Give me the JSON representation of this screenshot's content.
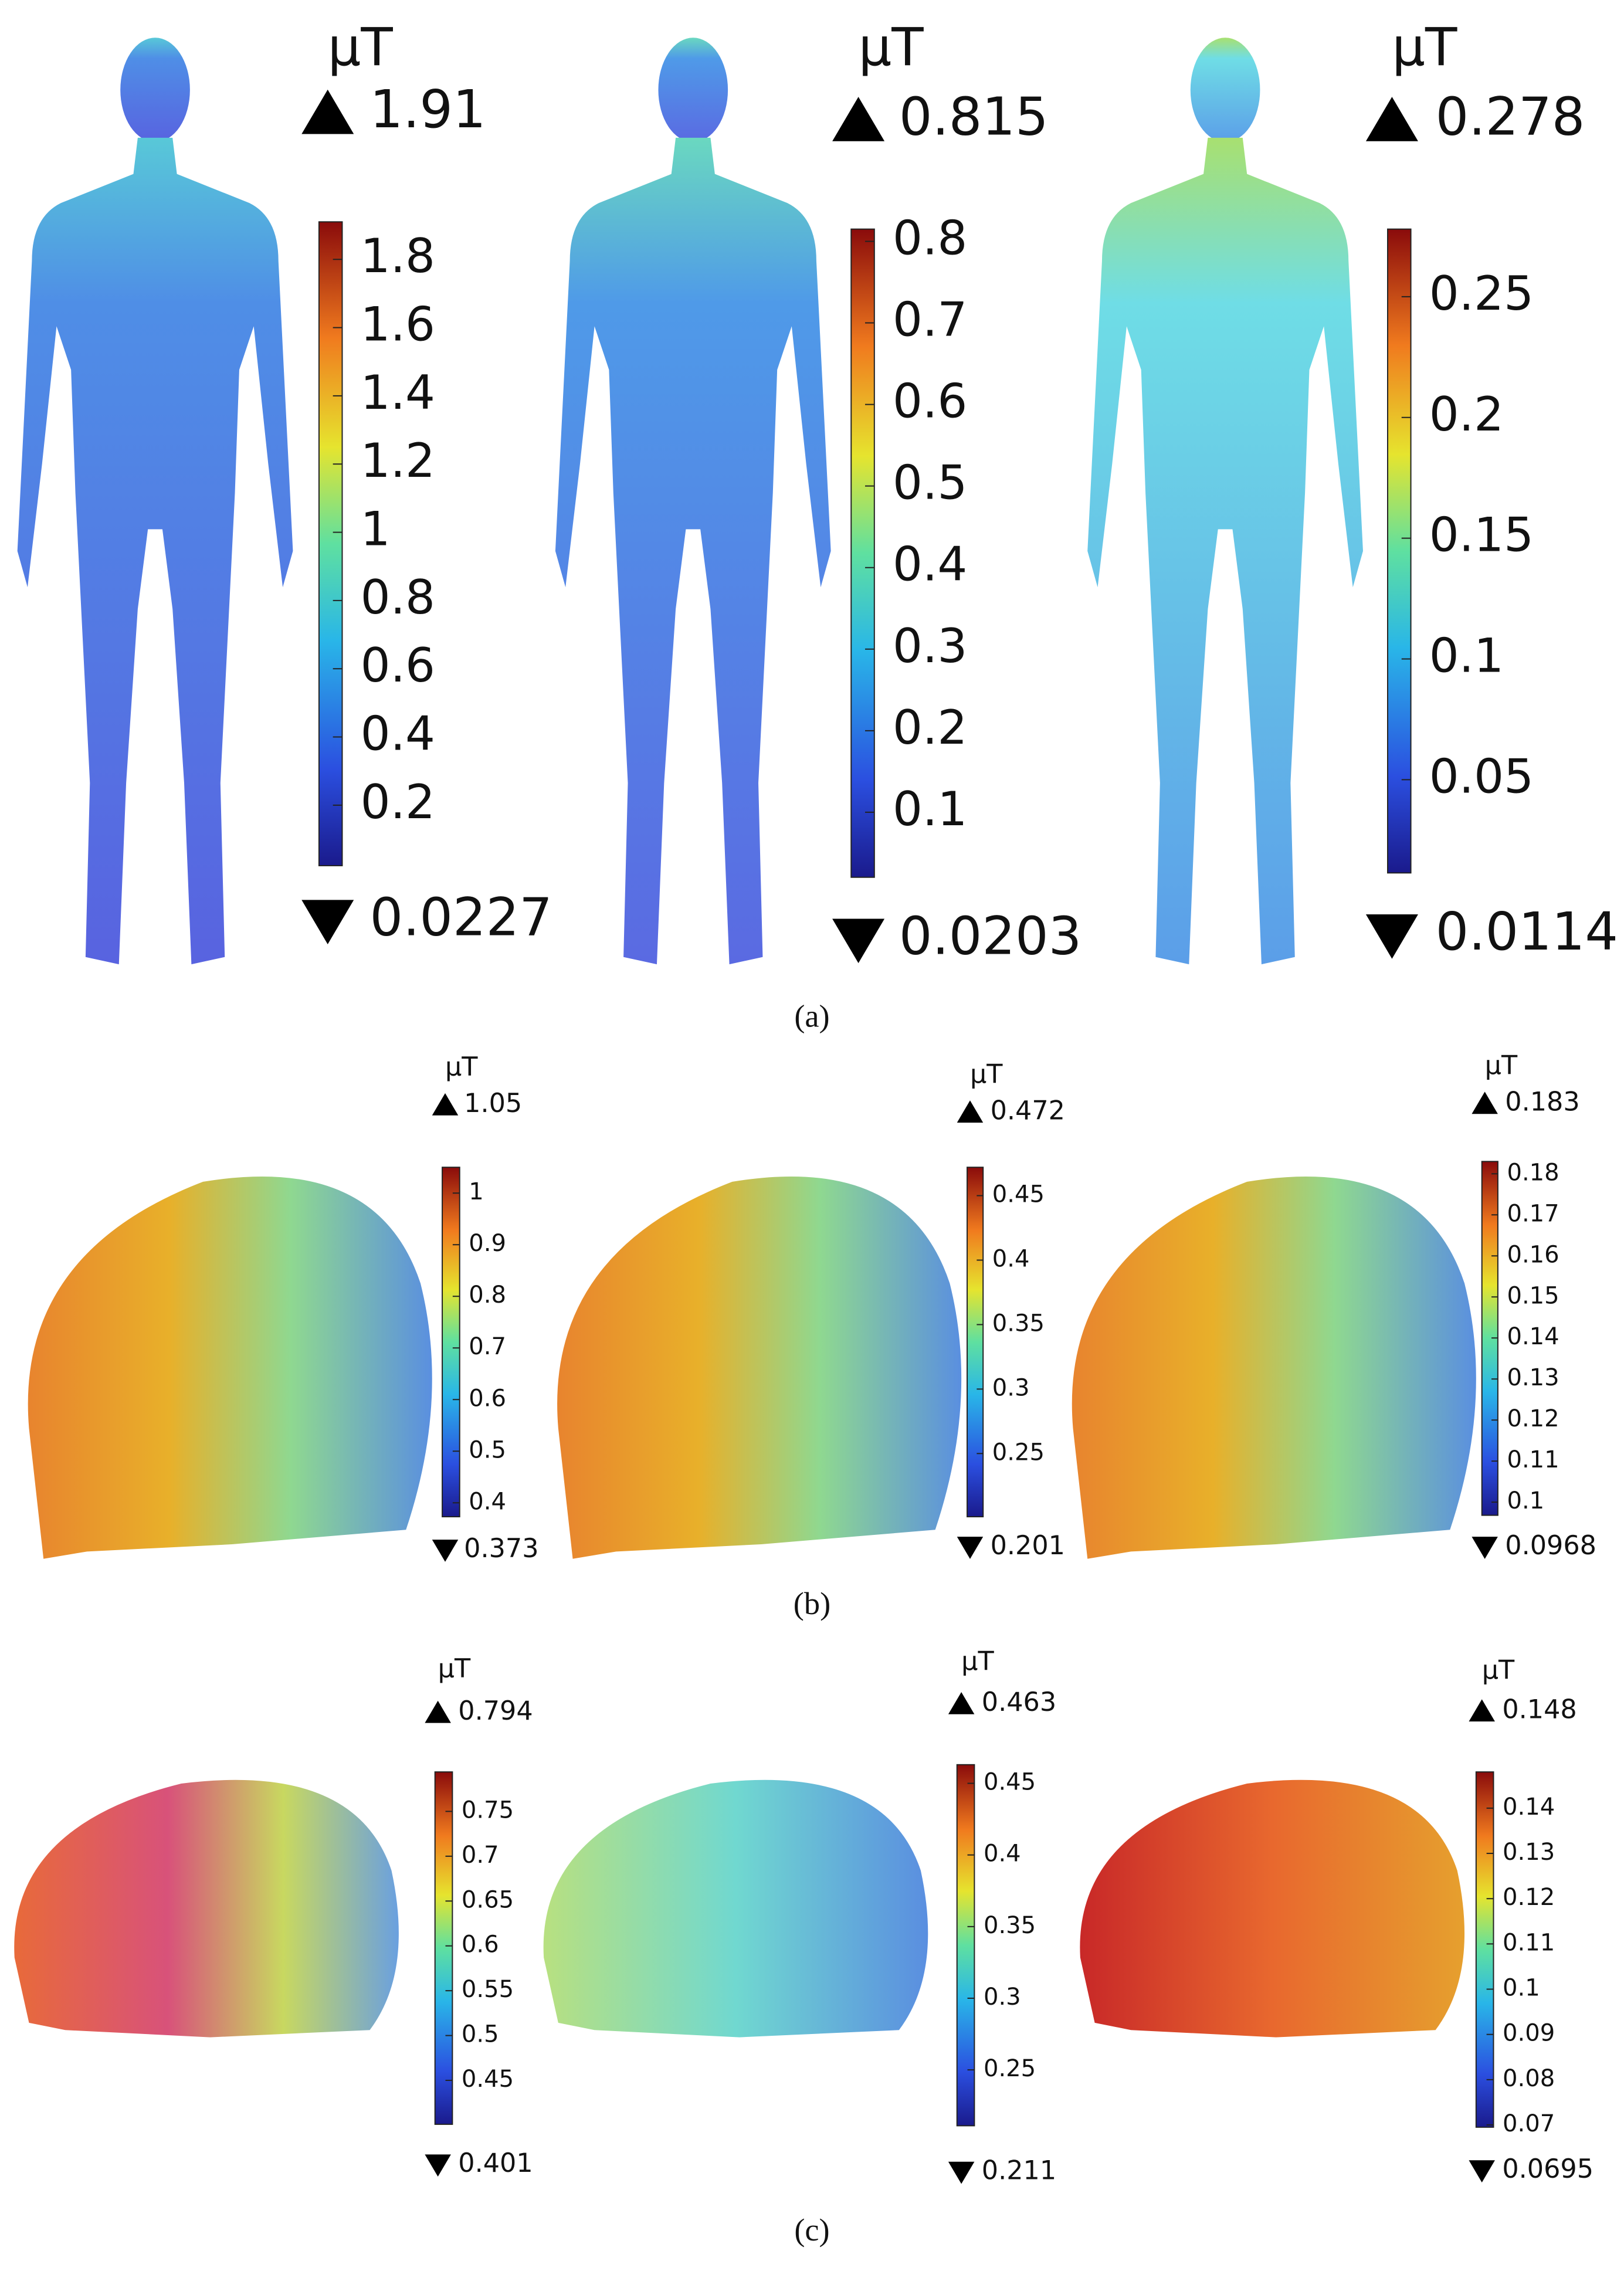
{
  "figure": {
    "rows": [
      {
        "caption": "(a)",
        "panels": [
          {
            "unit": "μT",
            "max": 1.91,
            "min": 0.0227,
            "ticks": [
              0.2,
              0.4,
              0.6,
              0.8,
              1,
              1.2,
              1.4,
              1.6,
              1.8
            ]
          },
          {
            "unit": "μT",
            "max": 0.815,
            "min": 0.0203,
            "ticks": [
              0.1,
              0.2,
              0.3,
              0.4,
              0.5,
              0.6,
              0.7,
              0.8
            ]
          },
          {
            "unit": "μT",
            "max": 0.278,
            "min": 0.0114,
            "ticks": [
              0.05,
              0.1,
              0.15,
              0.2,
              0.25
            ]
          }
        ]
      },
      {
        "caption": "(b)",
        "panels": [
          {
            "unit": "μT",
            "max": 1.05,
            "min": 0.373,
            "ticks": [
              0.4,
              0.5,
              0.6,
              0.7,
              0.8,
              0.9,
              1
            ]
          },
          {
            "unit": "μT",
            "max": 0.472,
            "min": 0.201,
            "ticks": [
              0.25,
              0.3,
              0.35,
              0.4,
              0.45
            ]
          },
          {
            "unit": "μT",
            "max": 0.183,
            "min": 0.0968,
            "ticks": [
              0.1,
              0.11,
              0.12,
              0.13,
              0.14,
              0.15,
              0.16,
              0.17,
              0.18
            ]
          }
        ]
      },
      {
        "caption": "(c)",
        "panels": [
          {
            "unit": "μT",
            "max": 0.794,
            "min": 0.401,
            "ticks": [
              0.45,
              0.5,
              0.55,
              0.6,
              0.65,
              0.7,
              0.75
            ]
          },
          {
            "unit": "μT",
            "max": 0.463,
            "min": 0.211,
            "ticks": [
              0.25,
              0.3,
              0.35,
              0.4,
              0.45
            ]
          },
          {
            "unit": "μT",
            "max": 0.148,
            "min": 0.0695,
            "ticks": [
              0.07,
              0.08,
              0.09,
              0.1,
              0.11,
              0.12,
              0.13,
              0.14
            ]
          }
        ]
      }
    ]
  }
}
